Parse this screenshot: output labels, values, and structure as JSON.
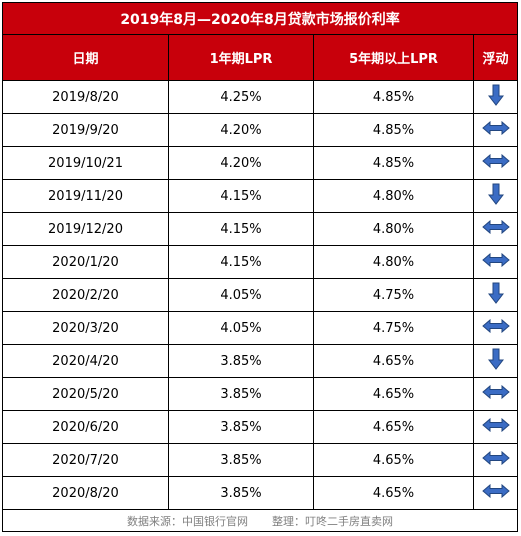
{
  "table": {
    "title": "2019年8月—2020年8月贷款市场报价利率",
    "headers": {
      "date": "日期",
      "lpr1y": "1年期LPR",
      "lpr5y": "5年期以上LPR",
      "trend": "浮动"
    },
    "rows": [
      {
        "date": "2019/8/20",
        "lpr1y": "4.25%",
        "lpr5y": "4.85%",
        "trend": "down"
      },
      {
        "date": "2019/9/20",
        "lpr1y": "4.20%",
        "lpr5y": "4.85%",
        "trend": "flat"
      },
      {
        "date": "2019/10/21",
        "lpr1y": "4.20%",
        "lpr5y": "4.85%",
        "trend": "flat"
      },
      {
        "date": "2019/11/20",
        "lpr1y": "4.15%",
        "lpr5y": "4.80%",
        "trend": "down"
      },
      {
        "date": "2019/12/20",
        "lpr1y": "4.15%",
        "lpr5y": "4.80%",
        "trend": "flat"
      },
      {
        "date": "2020/1/20",
        "lpr1y": "4.15%",
        "lpr5y": "4.80%",
        "trend": "flat"
      },
      {
        "date": "2020/2/20",
        "lpr1y": "4.05%",
        "lpr5y": "4.75%",
        "trend": "down"
      },
      {
        "date": "2020/3/20",
        "lpr1y": "4.05%",
        "lpr5y": "4.75%",
        "trend": "flat"
      },
      {
        "date": "2020/4/20",
        "lpr1y": "3.85%",
        "lpr5y": "4.65%",
        "trend": "down"
      },
      {
        "date": "2020/5/20",
        "lpr1y": "3.85%",
        "lpr5y": "4.65%",
        "trend": "flat"
      },
      {
        "date": "2020/6/20",
        "lpr1y": "3.85%",
        "lpr5y": "4.65%",
        "trend": "flat"
      },
      {
        "date": "2020/7/20",
        "lpr1y": "3.85%",
        "lpr5y": "4.65%",
        "trend": "flat"
      },
      {
        "date": "2020/8/20",
        "lpr1y": "3.85%",
        "lpr5y": "4.65%",
        "trend": "flat"
      }
    ],
    "trend_icons": {
      "down": "arrow-down-icon",
      "flat": "arrow-left-right-icon"
    },
    "colors": {
      "header_bg": "#c8000b",
      "header_text": "#ffffff",
      "arrow": "#3b6cc4",
      "arrow_outline": "#22467f"
    }
  },
  "footer": {
    "source": "数据来源：中国银行官网",
    "editor": "整理：叮咚二手房直卖网"
  }
}
